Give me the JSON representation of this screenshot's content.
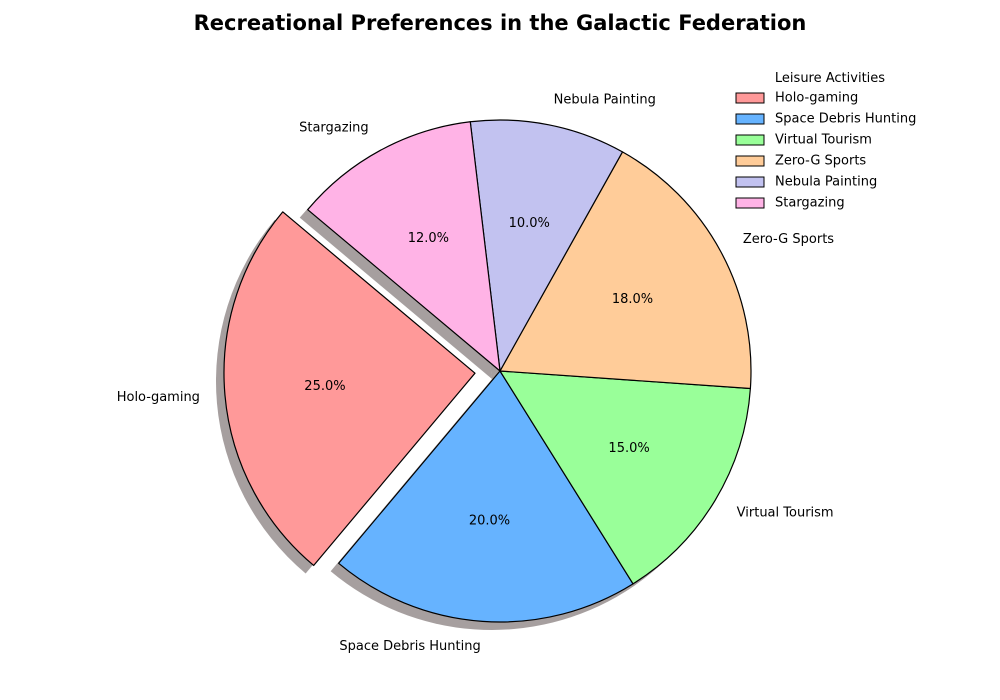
{
  "chart_data": {
    "type": "pie",
    "title": "Recreational Preferences in the Galactic Federation",
    "categories": [
      "Holo-gaming",
      "Space Debris Hunting",
      "Virtual Tourism",
      "Zero-G Sports",
      "Nebula Painting",
      "Stargazing"
    ],
    "values": [
      25,
      20,
      15,
      18,
      10,
      12
    ],
    "percent_labels": [
      "25.0%",
      "20.0%",
      "15.0%",
      "18.0%",
      "10.0%",
      "12.0%"
    ],
    "colors": [
      "#FF9999",
      "#66B3FF",
      "#99FF99",
      "#FFCC99",
      "#C2C2F0",
      "#FFB3E6"
    ],
    "exploded": [
      "Holo-gaming"
    ],
    "shadow": true,
    "start_angle_degrees": 140,
    "legend": {
      "title": "Leisure Activities",
      "placement": "top-right",
      "entries": [
        "Holo-gaming",
        "Space Debris Hunting",
        "Virtual Tourism",
        "Zero-G Sports",
        "Nebula Painting",
        "Stargazing"
      ]
    }
  }
}
